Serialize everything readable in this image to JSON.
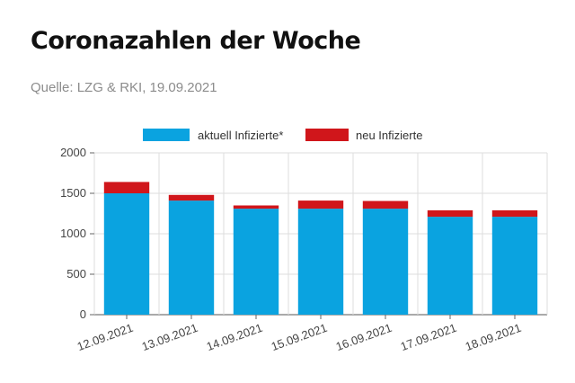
{
  "header": {
    "title": "Coronazahlen der Woche",
    "source": "Quelle: LZG & RKI, 19.09.2021"
  },
  "chart_data": {
    "type": "bar",
    "stacked": true,
    "categories": [
      "12.09.2021",
      "13.09.2021",
      "14.09.2021",
      "15.09.2021",
      "16.09.2021",
      "17.09.2021",
      "18.09.2021"
    ],
    "series": [
      {
        "name": "aktuell Infizierte*",
        "color": "#0aa3e0",
        "values": [
          1500,
          1410,
          1310,
          1310,
          1310,
          1210,
          1210
        ]
      },
      {
        "name": "neu Infizierte",
        "color": "#d0161b",
        "values": [
          140,
          70,
          40,
          100,
          95,
          80,
          80
        ]
      }
    ],
    "yticks": [
      0,
      500,
      1000,
      1500,
      2000
    ],
    "ylim": [
      0,
      2000
    ],
    "grid": true,
    "legend_position": "top"
  }
}
